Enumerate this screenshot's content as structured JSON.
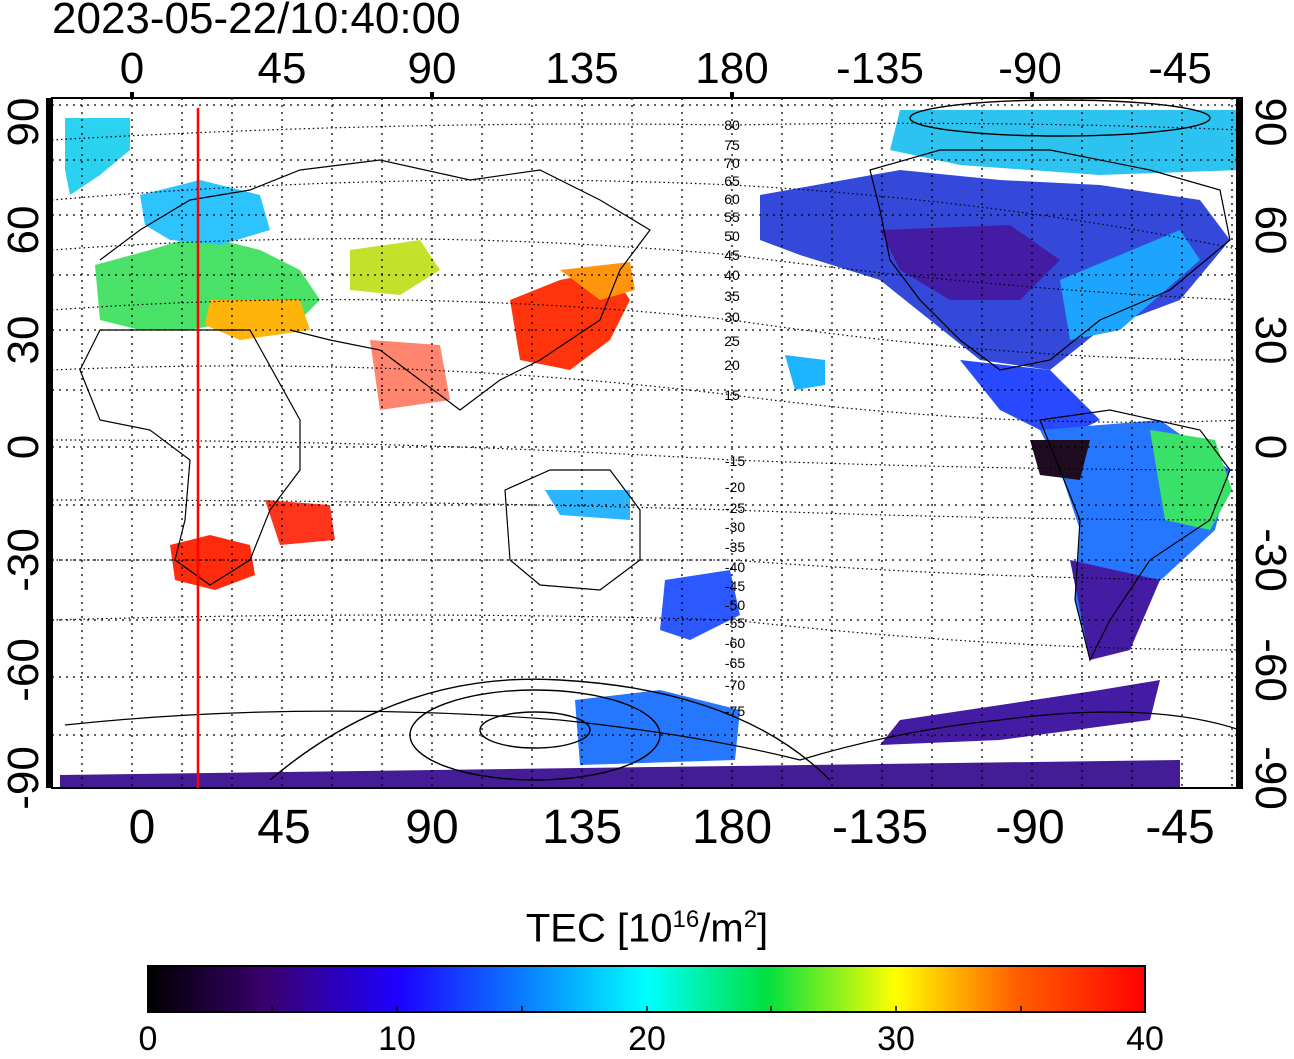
{
  "timestamp": "2023-05-22/10:40:00",
  "axes": {
    "x_ticks_top": [
      "0",
      "45",
      "90",
      "135",
      "180",
      "-135",
      "-90",
      "-45"
    ],
    "x_ticks_bottom": [
      "0",
      "45",
      "90",
      "135",
      "180",
      "-135",
      "-90",
      "-45"
    ],
    "y_ticks": [
      "90",
      "60",
      "30",
      "0",
      "-30",
      "-60",
      "-90"
    ]
  },
  "contour_labels": [
    "80",
    "75",
    "70",
    "65",
    "60",
    "55",
    "50",
    "45",
    "40",
    "35",
    "30",
    "25",
    "20",
    "15",
    "-15",
    "-20",
    "-25",
    "-30",
    "-35",
    "-40",
    "-45",
    "-50",
    "-55",
    "-60",
    "-65",
    "-70",
    "-75"
  ],
  "colorbar": {
    "label_prefix": "TEC  [10",
    "label_exp": "16",
    "label_mid": "/m",
    "label_exp2": "2",
    "label_suffix": "]",
    "ticks": [
      "0",
      "10",
      "20",
      "30",
      "40"
    ],
    "min": 0,
    "max": 40
  },
  "marker": {
    "longitude": 20,
    "color": "#ff0000"
  },
  "colors": {
    "frame": "#000000",
    "grid": "#000000",
    "marker": "#ff0000"
  }
}
